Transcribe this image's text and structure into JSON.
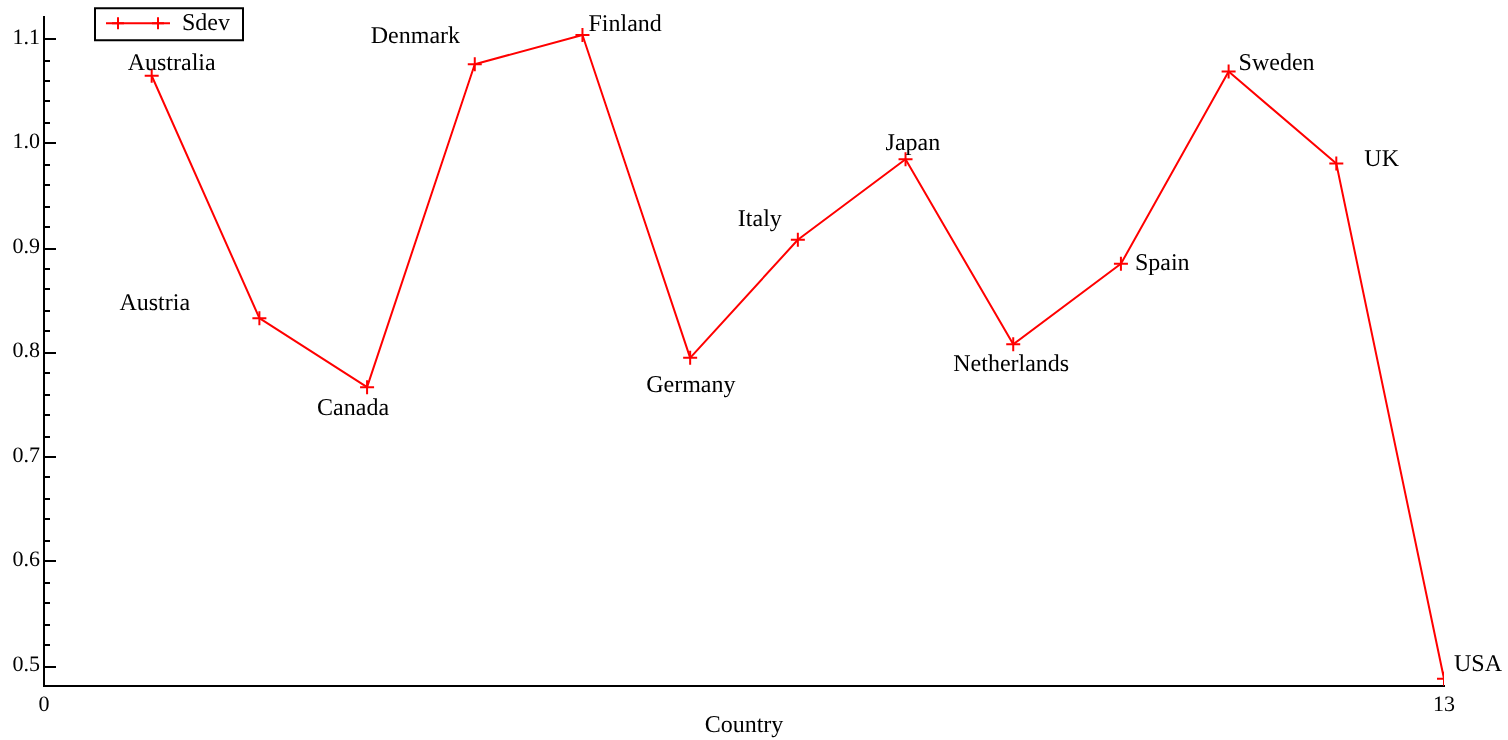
{
  "chart_data": {
    "type": "line",
    "xlabel": "Country",
    "x": [
      1,
      2,
      3,
      4,
      5,
      6,
      7,
      8,
      9,
      10,
      11,
      12,
      13
    ],
    "series": [
      {
        "name": "Sdev",
        "color": "#ff0000",
        "values": [
          1.064,
          0.832,
          0.766,
          1.075,
          1.103,
          0.794,
          0.907,
          0.984,
          0.807,
          0.884,
          1.068,
          0.98,
          0.487
        ]
      }
    ],
    "xlim": [
      0,
      13
    ],
    "xticks": [
      0,
      13
    ],
    "ylim": [
      0.48,
      1.12
    ],
    "yticks": [
      0.5,
      {
        "value": 0.52,
        "label": null
      },
      {
        "value": 0.54,
        "label": null
      },
      {
        "value": 0.56,
        "label": null
      },
      {
        "value": 0.58,
        "label": null
      },
      0.6,
      {
        "value": 0.62,
        "label": null
      },
      {
        "value": 0.64,
        "label": null
      },
      {
        "value": 0.66,
        "label": null
      },
      {
        "value": 0.68,
        "label": null
      },
      0.7,
      {
        "value": 0.72,
        "label": null
      },
      {
        "value": 0.74,
        "label": null
      },
      {
        "value": 0.76,
        "label": null
      },
      {
        "value": 0.78,
        "label": null
      },
      0.8,
      {
        "value": 0.82,
        "label": null
      },
      {
        "value": 0.84,
        "label": null
      },
      {
        "value": 0.86,
        "label": null
      },
      {
        "value": 0.88,
        "label": null
      },
      0.9,
      {
        "value": 0.92,
        "label": null
      },
      {
        "value": 0.94,
        "label": null
      },
      {
        "value": 0.96,
        "label": null
      },
      {
        "value": 0.98,
        "label": null
      },
      {
        "value": 1.0,
        "label": "1.0"
      },
      {
        "value": 1.02,
        "label": null
      },
      {
        "value": 1.04,
        "label": null
      },
      {
        "value": 1.06,
        "label": null
      },
      {
        "value": 1.08,
        "label": null
      },
      1.1
    ],
    "annotations": [
      {
        "text": "Australia",
        "x": 1,
        "y": 1.064
      },
      {
        "text": "Austria",
        "x": 2,
        "y": 0.832
      },
      {
        "text": "Canada",
        "x": 3,
        "y": 0.766
      },
      {
        "text": "Denmark",
        "x": 4,
        "y": 1.075
      },
      {
        "text": "Finland",
        "x": 5,
        "y": 1.103
      },
      {
        "text": "Germany",
        "x": 6,
        "y": 0.794
      },
      {
        "text": "Italy",
        "x": 7,
        "y": 0.907
      },
      {
        "text": "Japan",
        "x": 8,
        "y": 0.984
      },
      {
        "text": "Netherlands",
        "x": 9,
        "y": 0.807
      },
      {
        "text": "Spain",
        "x": 10,
        "y": 0.884
      },
      {
        "text": "Sweden",
        "x": 11,
        "y": 1.068
      },
      {
        "text": "UK",
        "x": 12,
        "y": 0.98
      },
      {
        "text": "USA",
        "x": 13,
        "y": 0.487
      }
    ],
    "grid": false,
    "legend": "top left",
    "marker": "cross",
    "line_style": "solid"
  }
}
